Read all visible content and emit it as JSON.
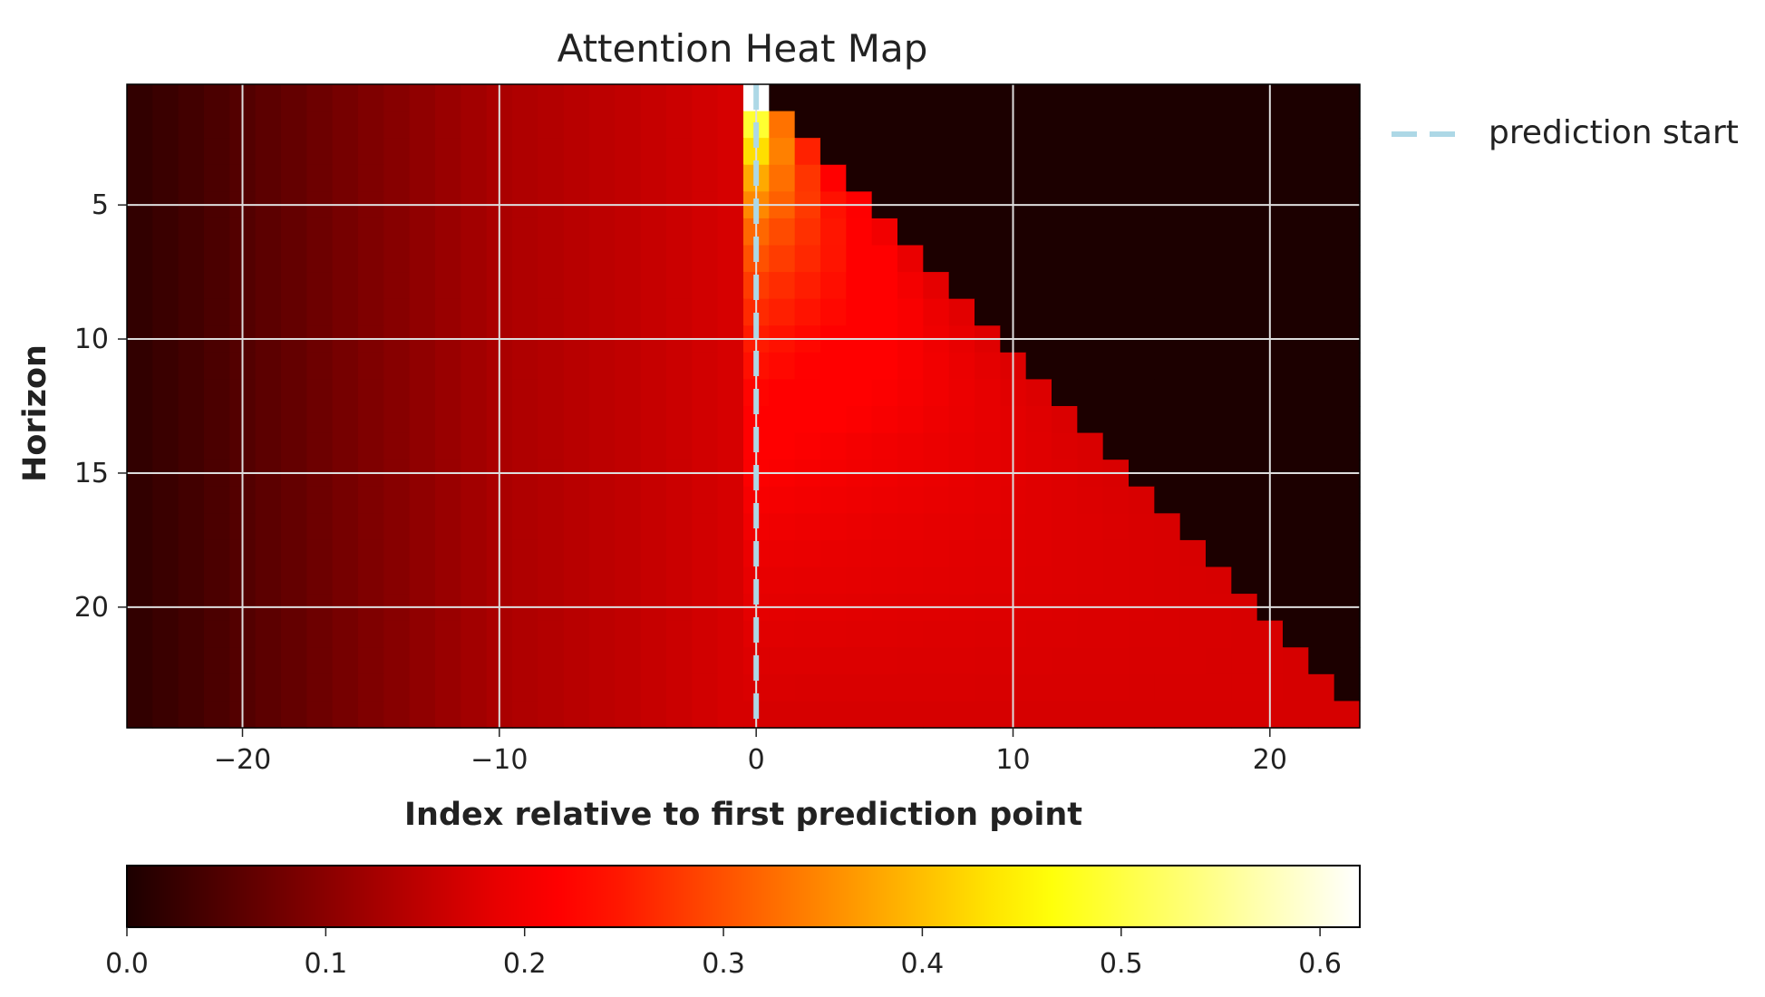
{
  "chart_data": {
    "type": "heatmap",
    "title": "Attention Heat Map",
    "xlabel": "Index relative to first prediction point",
    "ylabel": "Horizon",
    "x_range": [
      -24,
      23
    ],
    "y_range": [
      1,
      24
    ],
    "x_ticks": [
      -20,
      -10,
      0,
      10,
      20
    ],
    "x_tick_labels": [
      "−20",
      "−10",
      "0",
      "10",
      "20"
    ],
    "y_ticks": [
      5,
      10,
      15,
      20
    ],
    "y_tick_labels": [
      "5",
      "10",
      "15",
      "20"
    ],
    "grid": true,
    "colormap": "hot",
    "colorbar": {
      "orientation": "horizontal",
      "range": [
        0.0,
        0.62
      ],
      "ticks": [
        0.0,
        0.1,
        0.2,
        0.3,
        0.4,
        0.5,
        0.6
      ],
      "tick_labels": [
        "0.0",
        "0.1",
        "0.2",
        "0.3",
        "0.4",
        "0.5",
        "0.6"
      ]
    },
    "marker_line": {
      "x": 0,
      "label": "prediction start",
      "color": "#add8e6",
      "style": "dashed"
    },
    "legend_position": "outside-top-right",
    "past_values": {
      "x": [
        -24,
        -20,
        -10,
        -5,
        -1
      ],
      "attention": [
        0.02,
        0.05,
        0.13,
        0.15,
        0.17
      ]
    },
    "row_peak_at_x0": [
      {
        "horizon": 1,
        "attention": 0.62
      },
      {
        "horizon": 2,
        "attention": 0.49
      },
      {
        "horizon": 3,
        "attention": 0.43
      },
      {
        "horizon": 4,
        "attention": 0.38
      },
      {
        "horizon": 5,
        "attention": 0.35
      },
      {
        "horizon": 6,
        "attention": 0.32
      },
      {
        "horizon": 8,
        "attention": 0.28
      },
      {
        "horizon": 10,
        "attention": 0.25
      },
      {
        "horizon": 14,
        "attention": 0.21
      },
      {
        "horizon": 18,
        "attention": 0.19
      },
      {
        "horizon": 24,
        "attention": 0.17
      }
    ],
    "masked_region": "x >= horizon is 0 (future positions)"
  }
}
